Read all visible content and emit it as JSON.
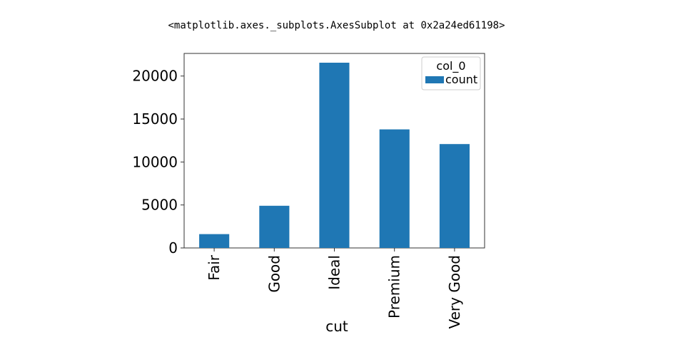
{
  "output_repr": "<matplotlib.axes._subplots.AxesSubplot at 0x2a24ed61198>",
  "chart_data": {
    "type": "bar",
    "categories": [
      "Fair",
      "Good",
      "Ideal",
      "Premium",
      "Very Good"
    ],
    "series": [
      {
        "name": "count",
        "values": [
          1610,
          4906,
          21551,
          13791,
          12082
        ]
      }
    ],
    "title": "",
    "xlabel": "cut",
    "ylabel": "",
    "ylim": [
      0,
      22630
    ],
    "yticks": [
      0,
      5000,
      10000,
      15000,
      20000
    ],
    "grid": false,
    "legend": {
      "title": "col_0",
      "placement": "top-right"
    },
    "colors": {
      "bar": "#1f77b4",
      "axes": "#333333"
    }
  }
}
